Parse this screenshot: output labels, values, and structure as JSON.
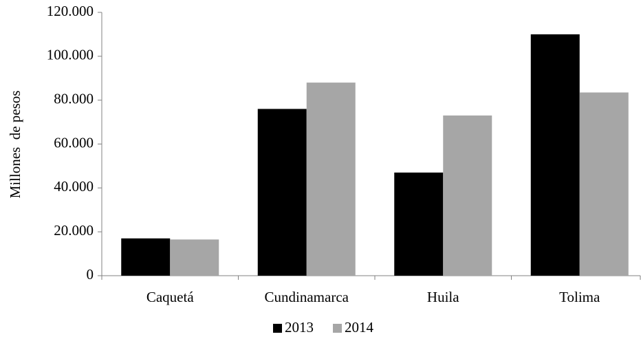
{
  "chart_data": {
    "type": "bar",
    "y_label": "Millones  de pesos",
    "categories": [
      "Caquetá",
      "Cundinamarca",
      "Huila",
      "Tolima"
    ],
    "series": [
      {
        "name": "2013",
        "color": "#000000",
        "values": [
          17000,
          76000,
          47000,
          110000
        ]
      },
      {
        "name": "2014",
        "color": "#a6a6a6",
        "values": [
          16500,
          88000,
          73000,
          83500
        ]
      }
    ],
    "ylim": [
      0,
      120000
    ],
    "yticks": [
      0,
      {
        "value": 20000,
        "label": "20.000"
      },
      {
        "value": 40000,
        "label": "40.000"
      },
      {
        "value": 60000,
        "label": "60.000"
      },
      {
        "value": 80000,
        "label": "80.000"
      },
      {
        "value": 100000,
        "label": "100.000"
      },
      {
        "value": 120000,
        "label": "120.000"
      }
    ],
    "legend": "bottom"
  }
}
